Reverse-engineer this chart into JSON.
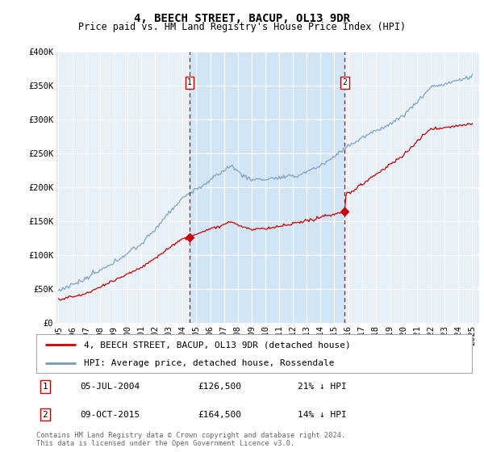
{
  "title": "4, BEECH STREET, BACUP, OL13 9DR",
  "subtitle": "Price paid vs. HM Land Registry's House Price Index (HPI)",
  "ylim": [
    0,
    400000
  ],
  "xlim_start": 1994.8,
  "xlim_end": 2025.5,
  "yticks": [
    0,
    50000,
    100000,
    150000,
    200000,
    250000,
    300000,
    350000,
    400000
  ],
  "ytick_labels": [
    "£0",
    "£50K",
    "£100K",
    "£150K",
    "£200K",
    "£250K",
    "£300K",
    "£350K",
    "£400K"
  ],
  "xticks": [
    1995,
    1996,
    1997,
    1998,
    1999,
    2000,
    2001,
    2002,
    2003,
    2004,
    2005,
    2006,
    2007,
    2008,
    2009,
    2010,
    2011,
    2012,
    2013,
    2014,
    2015,
    2016,
    2017,
    2018,
    2019,
    2020,
    2021,
    2022,
    2023,
    2024,
    2025
  ],
  "background_color": "#ffffff",
  "plot_bg_color": "#e8f0f8",
  "shade_color": "#d0e4f5",
  "grid_color": "#ffffff",
  "red_line_color": "#cc0000",
  "blue_line_color": "#7799bb",
  "marker1_x": 2004.5,
  "marker2_x": 2015.75,
  "sale1_price_y": 126500,
  "sale2_price_y": 164500,
  "sale1_date": "05-JUL-2004",
  "sale1_price": "£126,500",
  "sale1_hpi": "21% ↓ HPI",
  "sale2_date": "09-OCT-2015",
  "sale2_price": "£164,500",
  "sale2_hpi": "14% ↓ HPI",
  "legend_label_red": "4, BEECH STREET, BACUP, OL13 9DR (detached house)",
  "legend_label_blue": "HPI: Average price, detached house, Rossendale",
  "footer": "Contains HM Land Registry data © Crown copyright and database right 2024.\nThis data is licensed under the Open Government Licence v3.0.",
  "title_fontsize": 10,
  "subtitle_fontsize": 8.5,
  "tick_fontsize": 7.5,
  "legend_fontsize": 8
}
